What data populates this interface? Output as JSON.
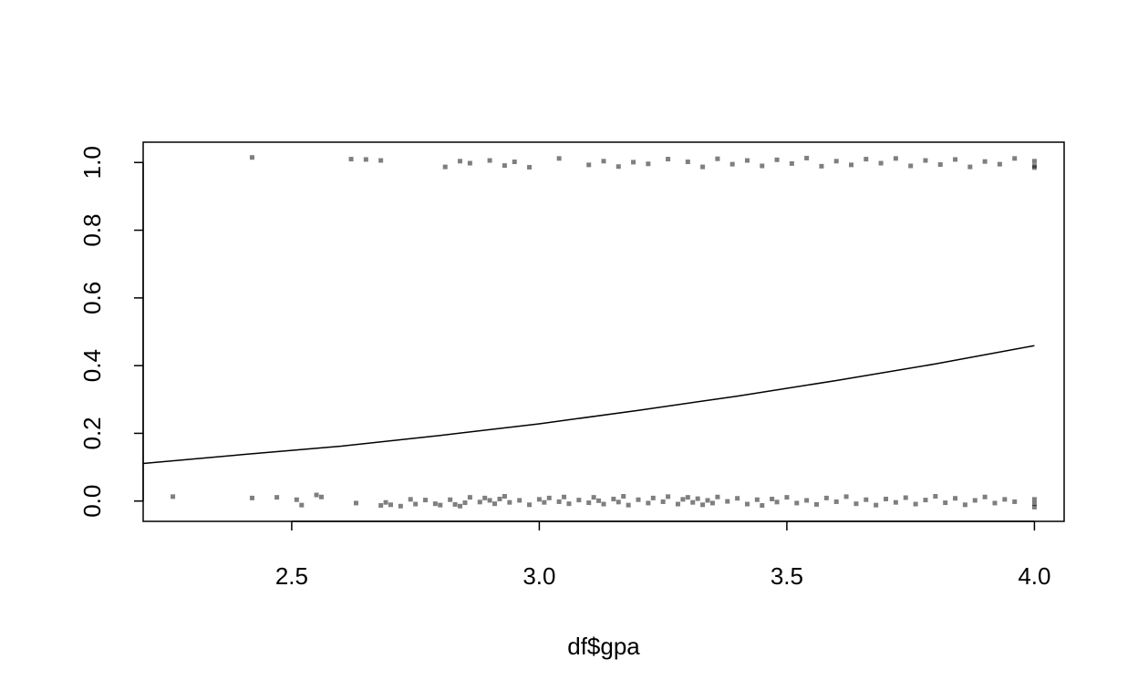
{
  "chart_data": {
    "type": "scatter",
    "title": "",
    "xlabel": "df$gpa",
    "ylabel": "",
    "xlim": [
      2.2,
      4.06
    ],
    "ylim": [
      -0.06,
      1.06
    ],
    "xticks": [
      "2.5",
      "3.0",
      "3.5",
      "4.0"
    ],
    "yticks": [
      "0.0",
      "0.2",
      "0.4",
      "0.6",
      "0.8",
      "1.0"
    ],
    "xtick_values": [
      2.5,
      3.0,
      3.5,
      4.0
    ],
    "ytick_values": [
      0.0,
      0.2,
      0.4,
      0.6,
      0.8,
      1.0
    ],
    "grid": false,
    "point_color": "#000000",
    "point_alpha": 0.5,
    "line_color": "#000000",
    "series": [
      {
        "type": "scatter",
        "points": [
          [
            2.26,
            0.013
          ],
          [
            2.42,
            0.009
          ],
          [
            2.47,
            0.011
          ],
          [
            2.51,
            0.004
          ],
          [
            2.52,
            -0.012
          ],
          [
            2.55,
            0.018
          ],
          [
            2.56,
            0.012
          ],
          [
            2.63,
            -0.006
          ],
          [
            2.68,
            -0.013
          ],
          [
            2.69,
            -0.004
          ],
          [
            2.7,
            -0.011
          ],
          [
            2.72,
            -0.015
          ],
          [
            2.74,
            0.005
          ],
          [
            2.75,
            -0.009
          ],
          [
            2.77,
            0.003
          ],
          [
            2.79,
            -0.008
          ],
          [
            2.8,
            -0.012
          ],
          [
            2.82,
            0.004
          ],
          [
            2.83,
            -0.01
          ],
          [
            2.84,
            -0.015
          ],
          [
            2.85,
            -0.005
          ],
          [
            2.86,
            0.011
          ],
          [
            2.88,
            -0.003
          ],
          [
            2.89,
            0.009
          ],
          [
            2.9,
            0.002
          ],
          [
            2.91,
            -0.008
          ],
          [
            2.92,
            0.006
          ],
          [
            2.93,
            0.014
          ],
          [
            2.94,
            -0.004
          ],
          [
            2.96,
            0.002
          ],
          [
            2.98,
            -0.011
          ],
          [
            3.0,
            0.005
          ],
          [
            3.01,
            -0.004
          ],
          [
            3.02,
            0.009
          ],
          [
            3.04,
            -0.002
          ],
          [
            3.05,
            0.012
          ],
          [
            3.06,
            -0.008
          ],
          [
            3.08,
            0.003
          ],
          [
            3.1,
            -0.005
          ],
          [
            3.11,
            0.011
          ],
          [
            3.12,
            0.001
          ],
          [
            3.13,
            -0.009
          ],
          [
            3.15,
            0.006
          ],
          [
            3.16,
            -0.003
          ],
          [
            3.17,
            0.014
          ],
          [
            3.18,
            -0.012
          ],
          [
            3.2,
            0.004
          ],
          [
            3.22,
            -0.006
          ],
          [
            3.23,
            0.009
          ],
          [
            3.25,
            -0.002
          ],
          [
            3.26,
            0.013
          ],
          [
            3.28,
            -0.009
          ],
          [
            3.29,
            0.005
          ],
          [
            3.3,
            0.011
          ],
          [
            3.31,
            -0.004
          ],
          [
            3.32,
            0.007
          ],
          [
            3.33,
            -0.011
          ],
          [
            3.34,
            0.002
          ],
          [
            3.35,
            -0.006
          ],
          [
            3.36,
            0.012
          ],
          [
            3.38,
            -0.001
          ],
          [
            3.4,
            0.008
          ],
          [
            3.42,
            -0.009
          ],
          [
            3.44,
            0.004
          ],
          [
            3.45,
            -0.013
          ],
          [
            3.47,
            0.006
          ],
          [
            3.48,
            -0.003
          ],
          [
            3.5,
            0.011
          ],
          [
            3.52,
            -0.006
          ],
          [
            3.54,
            0.002
          ],
          [
            3.56,
            -0.01
          ],
          [
            3.58,
            0.009
          ],
          [
            3.6,
            -0.002
          ],
          [
            3.62,
            0.013
          ],
          [
            3.64,
            -0.008
          ],
          [
            3.66,
            0.004
          ],
          [
            3.68,
            -0.012
          ],
          [
            3.7,
            0.006
          ],
          [
            3.72,
            -0.004
          ],
          [
            3.74,
            0.01
          ],
          [
            3.76,
            -0.009
          ],
          [
            3.78,
            0.003
          ],
          [
            3.8,
            0.014
          ],
          [
            3.82,
            -0.005
          ],
          [
            3.84,
            0.008
          ],
          [
            3.86,
            -0.011
          ],
          [
            3.88,
            0.002
          ],
          [
            3.9,
            0.012
          ],
          [
            3.92,
            -0.006
          ],
          [
            3.94,
            0.005
          ],
          [
            3.96,
            -0.002
          ],
          [
            4.0,
            -0.018
          ],
          [
            4.0,
            0.005
          ],
          [
            4.0,
            -0.008
          ],
          [
            2.42,
            1.015
          ],
          [
            2.62,
            1.01
          ],
          [
            2.65,
            1.009
          ],
          [
            2.68,
            1.006
          ],
          [
            2.81,
            0.987
          ],
          [
            2.84,
            1.004
          ],
          [
            2.86,
            0.998
          ],
          [
            2.9,
            1.006
          ],
          [
            2.93,
            0.991
          ],
          [
            2.95,
            1.002
          ],
          [
            2.98,
            0.986
          ],
          [
            3.04,
            1.012
          ],
          [
            3.1,
            0.993
          ],
          [
            3.13,
            1.004
          ],
          [
            3.16,
            0.988
          ],
          [
            3.19,
            1.001
          ],
          [
            3.22,
            0.996
          ],
          [
            3.26,
            1.01
          ],
          [
            3.3,
            1.002
          ],
          [
            3.33,
            0.987
          ],
          [
            3.36,
            1.011
          ],
          [
            3.39,
            0.995
          ],
          [
            3.42,
            1.006
          ],
          [
            3.45,
            0.99
          ],
          [
            3.48,
            1.008
          ],
          [
            3.51,
            0.997
          ],
          [
            3.54,
            1.013
          ],
          [
            3.57,
            0.989
          ],
          [
            3.6,
            1.004
          ],
          [
            3.63,
            0.993
          ],
          [
            3.66,
            1.01
          ],
          [
            3.69,
            0.998
          ],
          [
            3.72,
            1.012
          ],
          [
            3.75,
            0.99
          ],
          [
            3.78,
            1.006
          ],
          [
            3.81,
            0.994
          ],
          [
            3.84,
            1.009
          ],
          [
            3.87,
            0.987
          ],
          [
            3.9,
            1.003
          ],
          [
            3.93,
            0.995
          ],
          [
            3.96,
            1.012
          ],
          [
            4.0,
            0.99
          ],
          [
            4.0,
            1.004
          ],
          [
            4.0,
            0.985
          ]
        ]
      },
      {
        "type": "line",
        "x": [
          2.2,
          2.4,
          2.6,
          2.8,
          3.0,
          3.2,
          3.4,
          3.6,
          3.8,
          4.0
        ],
        "y": [
          0.111,
          0.137,
          0.162,
          0.194,
          0.228,
          0.268,
          0.31,
          0.356,
          0.405,
          0.459
        ]
      }
    ]
  }
}
